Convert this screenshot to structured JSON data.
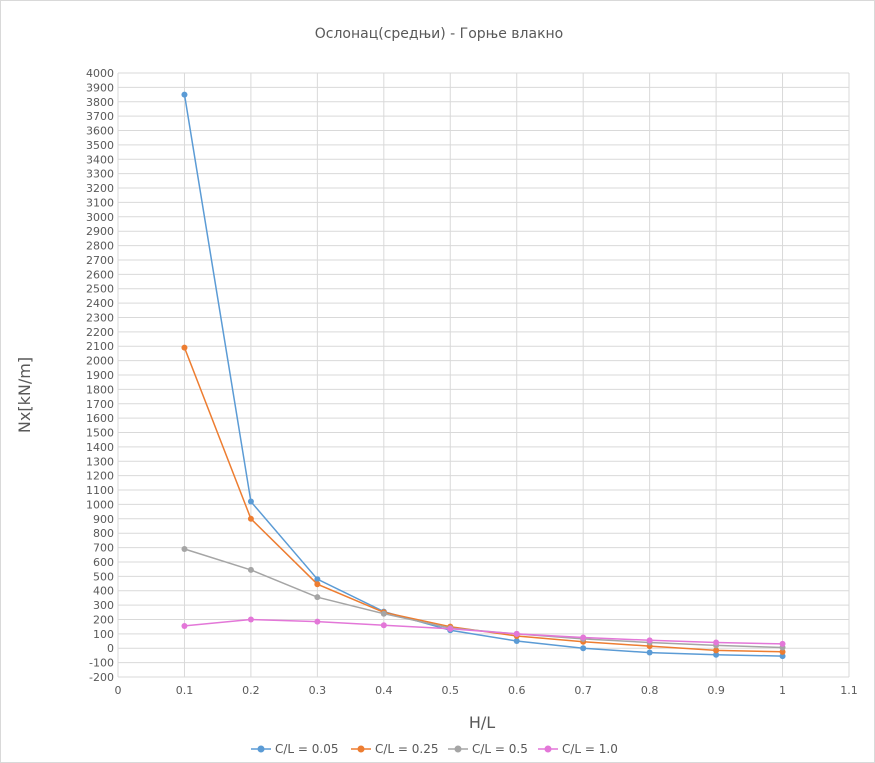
{
  "chart_data": {
    "type": "line",
    "title": "Ослонац(средњи) - Горње влакно",
    "xlabel": "H/L",
    "ylabel": "Nx[kN/m]",
    "xlim": [
      0,
      1.1
    ],
    "ylim": [
      -200,
      4000
    ],
    "xticks": [
      "0",
      "0.1",
      "0.2",
      "0.3",
      "0.4",
      "0.5",
      "0.6",
      "0.7",
      "0.8",
      "0.9",
      "1",
      "1.1"
    ],
    "yticks": [
      "-200",
      "-100",
      "0",
      "100",
      "200",
      "300",
      "400",
      "500",
      "600",
      "700",
      "800",
      "900",
      "1000",
      "1100",
      "1200",
      "1300",
      "1400",
      "1500",
      "1600",
      "1700",
      "1800",
      "1900",
      "2000",
      "2100",
      "2200",
      "2300",
      "2400",
      "2500",
      "2600",
      "2700",
      "2800",
      "2900",
      "3000",
      "3100",
      "3200",
      "3300",
      "3400",
      "3500",
      "3600",
      "3700",
      "3800",
      "3900",
      "4000"
    ],
    "grid": true,
    "legend_position": "bottom",
    "x": [
      0.1,
      0.2,
      0.3,
      0.4,
      0.5,
      0.6,
      0.7,
      0.8,
      0.9,
      1.0
    ],
    "series": [
      {
        "name": "C/L = 0.05",
        "color": "#5b9bd5",
        "values": [
          3850,
          1020,
          480,
          255,
          125,
          50,
          0,
          -30,
          -45,
          -55
        ]
      },
      {
        "name": "C/L = 0.25",
        "color": "#ed7d31",
        "values": [
          2090,
          900,
          445,
          250,
          150,
          85,
          45,
          15,
          -15,
          -25
        ]
      },
      {
        "name": "C/L = 0.5",
        "color": "#a5a5a5",
        "values": [
          690,
          545,
          355,
          240,
          140,
          100,
          65,
          40,
          20,
          5
        ]
      },
      {
        "name": "C/L = 1.0",
        "color": "#e377d8",
        "values": [
          155,
          200,
          185,
          160,
          135,
          100,
          75,
          55,
          40,
          30
        ]
      }
    ]
  }
}
